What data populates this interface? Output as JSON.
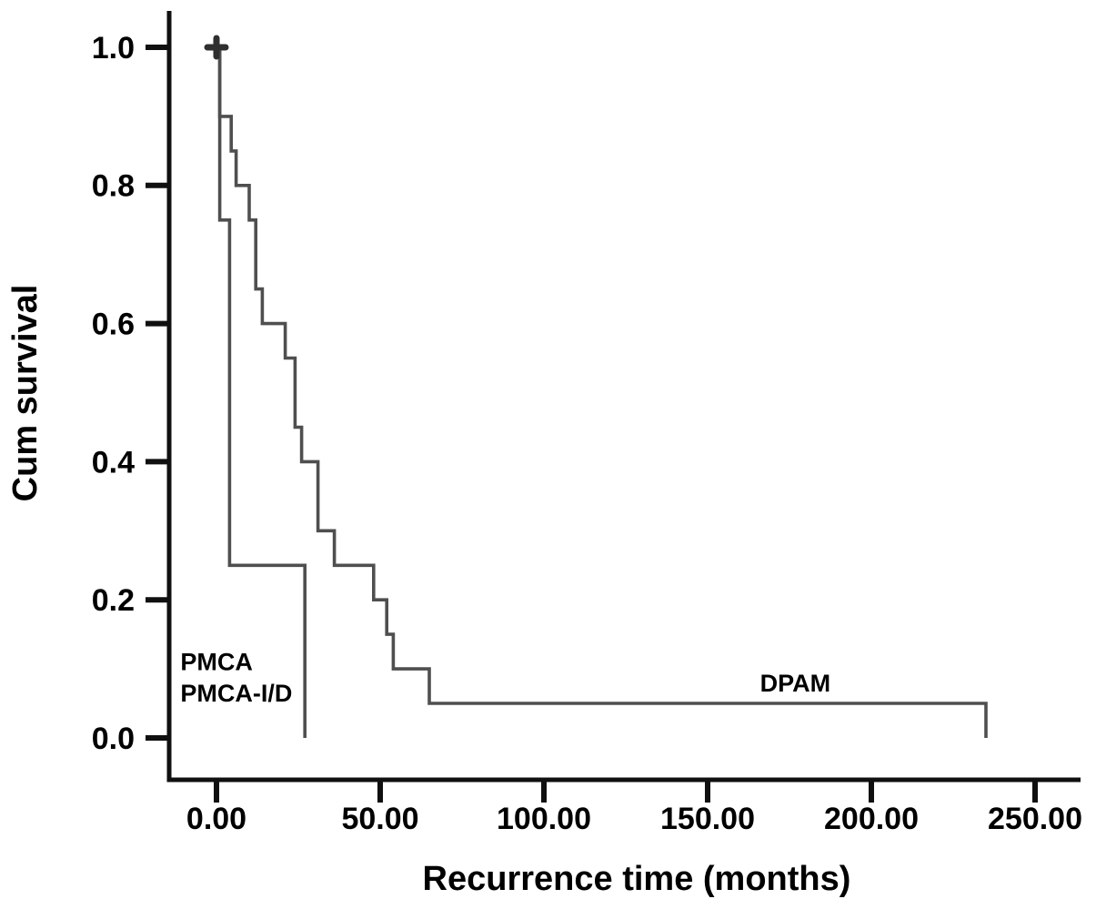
{
  "colors": {
    "background": "#ffffff",
    "axis": "#101010",
    "curve": "#4f4f4f",
    "censor": "#2f2f2f",
    "text": "#000000"
  },
  "chart_data": {
    "type": "line",
    "subtype": "kaplan-meier-step-function",
    "title": "",
    "xlabel": "Recurrence time (months)",
    "ylabel": "Cum survival",
    "xlim": [
      -14,
      264
    ],
    "ylim": [
      0,
      1.05
    ],
    "grid": false,
    "legend_position": "inline-annotations",
    "x_ticks": [
      {
        "value": 0,
        "label": "0.00"
      },
      {
        "value": 50,
        "label": "50.00"
      },
      {
        "value": 100,
        "label": "100.00"
      },
      {
        "value": 150,
        "label": "150.00"
      },
      {
        "value": 200,
        "label": "200.00"
      },
      {
        "value": 250,
        "label": "250.00"
      }
    ],
    "y_ticks": [
      {
        "value": 0.0,
        "label": "0.0"
      },
      {
        "value": 0.2,
        "label": "0.2"
      },
      {
        "value": 0.4,
        "label": "0.4"
      },
      {
        "value": 0.6,
        "label": "0.6"
      },
      {
        "value": 0.8,
        "label": "0.8"
      },
      {
        "value": 1.0,
        "label": "1.0"
      }
    ],
    "series": [
      {
        "name": "PMCA / PMCA-I/D",
        "steps": [
          [
            0,
            1.0
          ],
          [
            1,
            1.0
          ],
          [
            1,
            0.75
          ],
          [
            4,
            0.75
          ],
          [
            4,
            0.25
          ],
          [
            27,
            0.25
          ],
          [
            27,
            0.0
          ]
        ],
        "censored": []
      },
      {
        "name": "DPAM",
        "steps": [
          [
            0,
            1.0
          ],
          [
            1,
            1.0
          ],
          [
            1,
            0.9
          ],
          [
            4.5,
            0.9
          ],
          [
            4.5,
            0.85
          ],
          [
            6,
            0.85
          ],
          [
            6,
            0.8
          ],
          [
            10,
            0.8
          ],
          [
            10,
            0.75
          ],
          [
            12,
            0.75
          ],
          [
            12,
            0.65
          ],
          [
            14,
            0.65
          ],
          [
            14,
            0.6
          ],
          [
            21,
            0.6
          ],
          [
            21,
            0.55
          ],
          [
            24,
            0.55
          ],
          [
            24,
            0.45
          ],
          [
            26,
            0.45
          ],
          [
            26,
            0.4
          ],
          [
            31,
            0.4
          ],
          [
            31,
            0.3
          ],
          [
            36,
            0.3
          ],
          [
            36,
            0.25
          ],
          [
            48,
            0.25
          ],
          [
            48,
            0.2
          ],
          [
            52,
            0.2
          ],
          [
            52,
            0.15
          ],
          [
            54,
            0.15
          ],
          [
            54,
            0.1
          ],
          [
            65,
            0.1
          ],
          [
            65,
            0.05
          ],
          [
            235,
            0.05
          ],
          [
            235,
            0.0
          ]
        ],
        "censored": [
          [
            0,
            1.0
          ]
        ]
      }
    ],
    "annotations": [
      {
        "text": "PMCA",
        "x": -11,
        "y": 0.098
      },
      {
        "text": "PMCA-I/D",
        "x": -11,
        "y": 0.053
      },
      {
        "text": "DPAM",
        "x": 166,
        "y": 0.067
      }
    ]
  }
}
